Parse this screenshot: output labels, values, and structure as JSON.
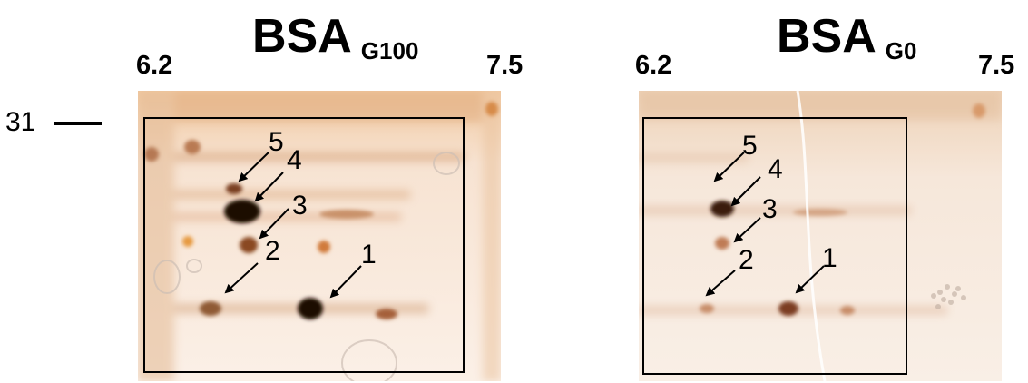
{
  "mw_marker": "31",
  "panels": [
    {
      "title": "BSA",
      "subscript": "G100",
      "ph_low": "6.2",
      "ph_high": "7.5",
      "spots": [
        "5",
        "4",
        "3",
        "2",
        "1"
      ]
    },
    {
      "title": "BSA",
      "subscript": "G0",
      "ph_low": "6.2",
      "ph_high": "7.5",
      "spots": [
        "5",
        "4",
        "3",
        "2",
        "1"
      ]
    }
  ]
}
